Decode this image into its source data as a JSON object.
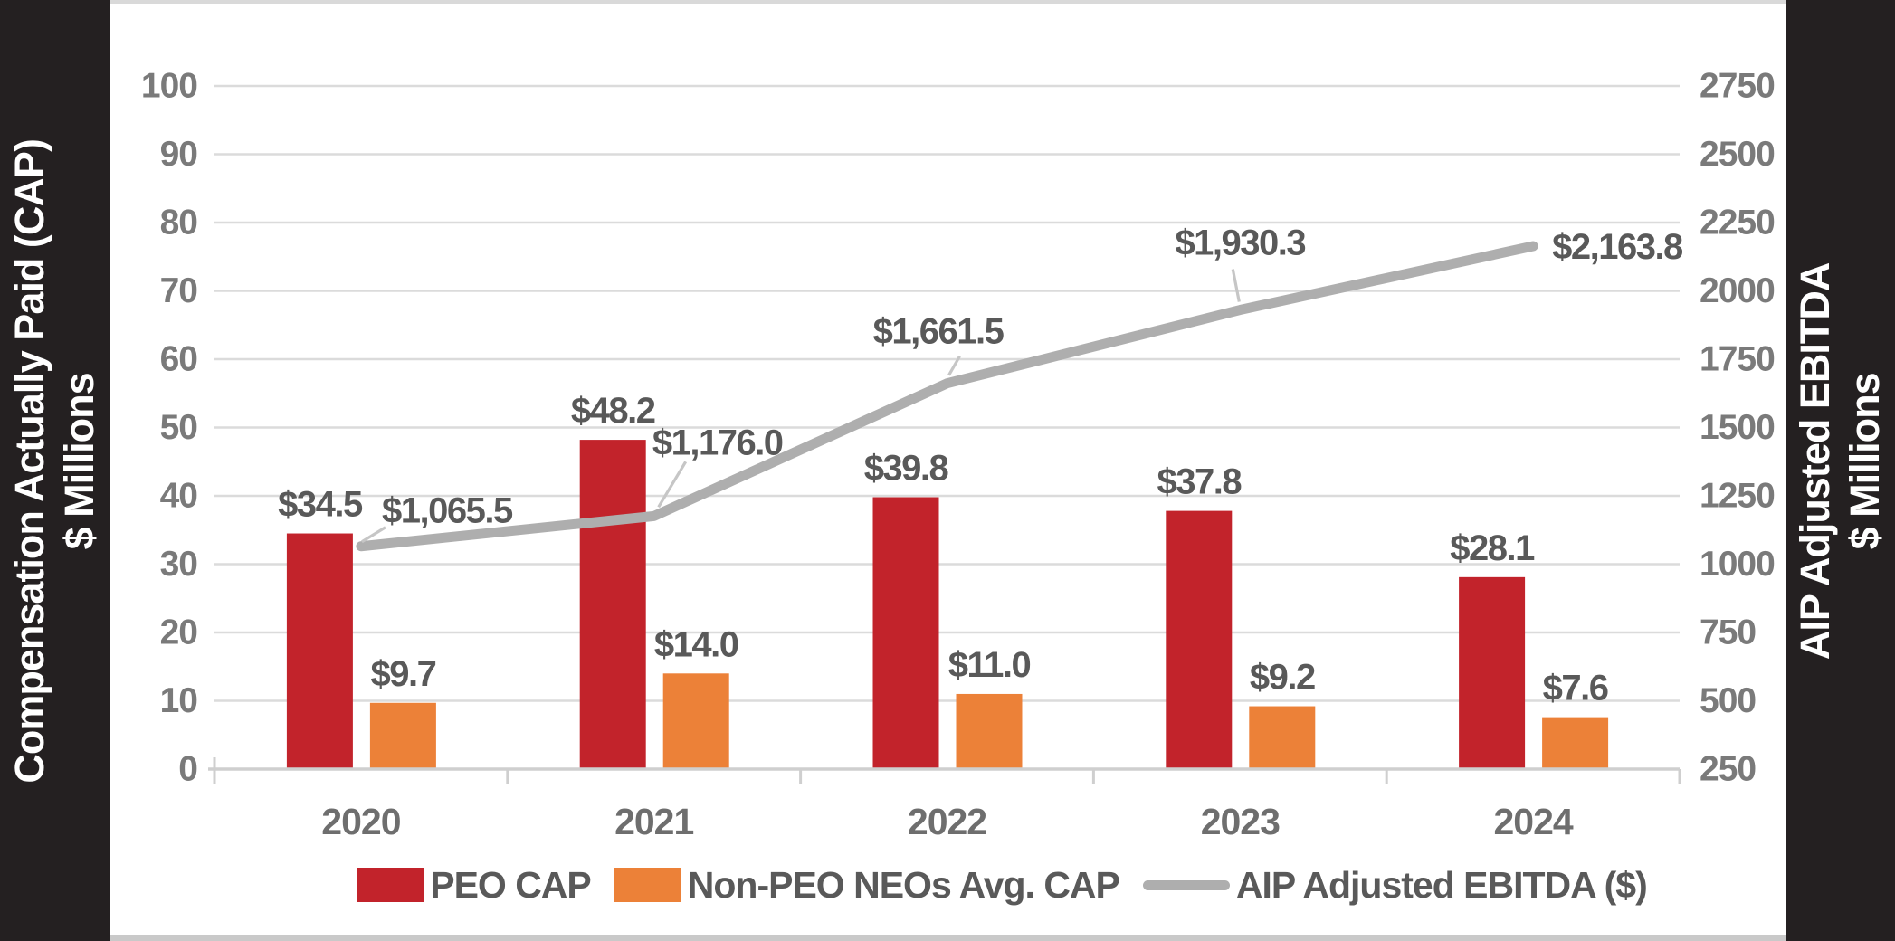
{
  "side_panels": {
    "left": {
      "line1": "Compensation Actually Paid (CAP)",
      "line2": "$ Millions"
    },
    "right": {
      "line1": "AIP Adjusted EBITDA",
      "line2": "$ Millions"
    }
  },
  "colors": {
    "background": "#FFFFFF",
    "panel_black": "#242021",
    "grid": "#DBDBDB",
    "axis_line": "#CFCFCF",
    "tick_label": "#7A7A7A",
    "year_label": "#6E6E6E",
    "data_label": "#595959",
    "leader_line": "#C6C6C6",
    "top_strip": "#D9D9D9",
    "bottom_strip": "#C9C9C9"
  },
  "chart_data": {
    "type": "combo",
    "categories": [
      "2020",
      "2021",
      "2022",
      "2023",
      "2024"
    ],
    "series": [
      {
        "name": "PEO CAP",
        "chart": "bar",
        "axis": "left",
        "color": "#C2232B",
        "values": [
          34.5,
          48.2,
          39.8,
          37.8,
          28.1
        ],
        "data_labels": [
          "$34.5",
          "$48.2",
          "$39.8",
          "$37.8",
          "$28.1"
        ]
      },
      {
        "name": "Non-PEO NEOs Avg. CAP",
        "chart": "bar",
        "axis": "left",
        "color": "#EC8138",
        "values": [
          9.7,
          14.0,
          11.0,
          9.2,
          7.6
        ],
        "data_labels": [
          "$9.7",
          "$14.0",
          "$11.0",
          "$9.2",
          "$7.6"
        ]
      },
      {
        "name": "AIP Adjusted EBITDA ($)",
        "chart": "line",
        "axis": "right",
        "color": "#AEAEAE",
        "values": [
          1065.5,
          1176.0,
          1661.5,
          1930.3,
          2163.8
        ],
        "data_labels": [
          "$1,065.5",
          "$1,176.0",
          "$1,661.5",
          "$1,930.3",
          "$2,163.8"
        ]
      }
    ],
    "left_axis": {
      "title": "Compensation Actually Paid (CAP) $ Millions",
      "min": 0,
      "max": 100,
      "step": 10,
      "tick_labels": [
        "0",
        "10",
        "20",
        "30",
        "40",
        "50",
        "60",
        "70",
        "80",
        "90",
        "100"
      ]
    },
    "right_axis": {
      "title": "AIP Adjusted EBITDA $ Millions",
      "min": 250,
      "max": 2750,
      "step": 250,
      "tick_labels": [
        "250",
        "500",
        "750",
        "1000",
        "1250",
        "1500",
        "1750",
        "2000",
        "2250",
        "2500",
        "2750"
      ]
    },
    "grid": true,
    "legend_position": "bottom"
  }
}
